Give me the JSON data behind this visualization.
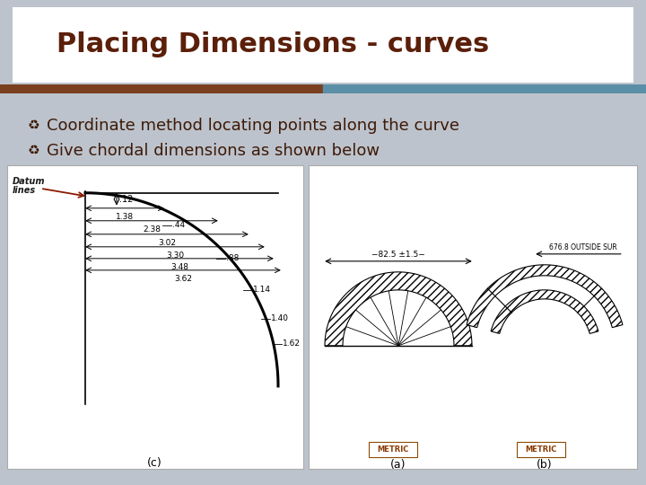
{
  "title": "Placing Dimensions - curves",
  "title_color": "#5B1F0A",
  "title_fontsize": 22,
  "title_fontweight": "bold",
  "bullet1": "Coordinate method locating points along the curve",
  "bullet2": "Give chordal dimensions as shown below",
  "bullet_fontsize": 13,
  "bullet_color": "#3D1A08",
  "slide_bg": "#BDC3CC",
  "header_bg": "#FFFFFF",
  "bar_brown": "#7B4020",
  "bar_teal": "#5B8FA8"
}
